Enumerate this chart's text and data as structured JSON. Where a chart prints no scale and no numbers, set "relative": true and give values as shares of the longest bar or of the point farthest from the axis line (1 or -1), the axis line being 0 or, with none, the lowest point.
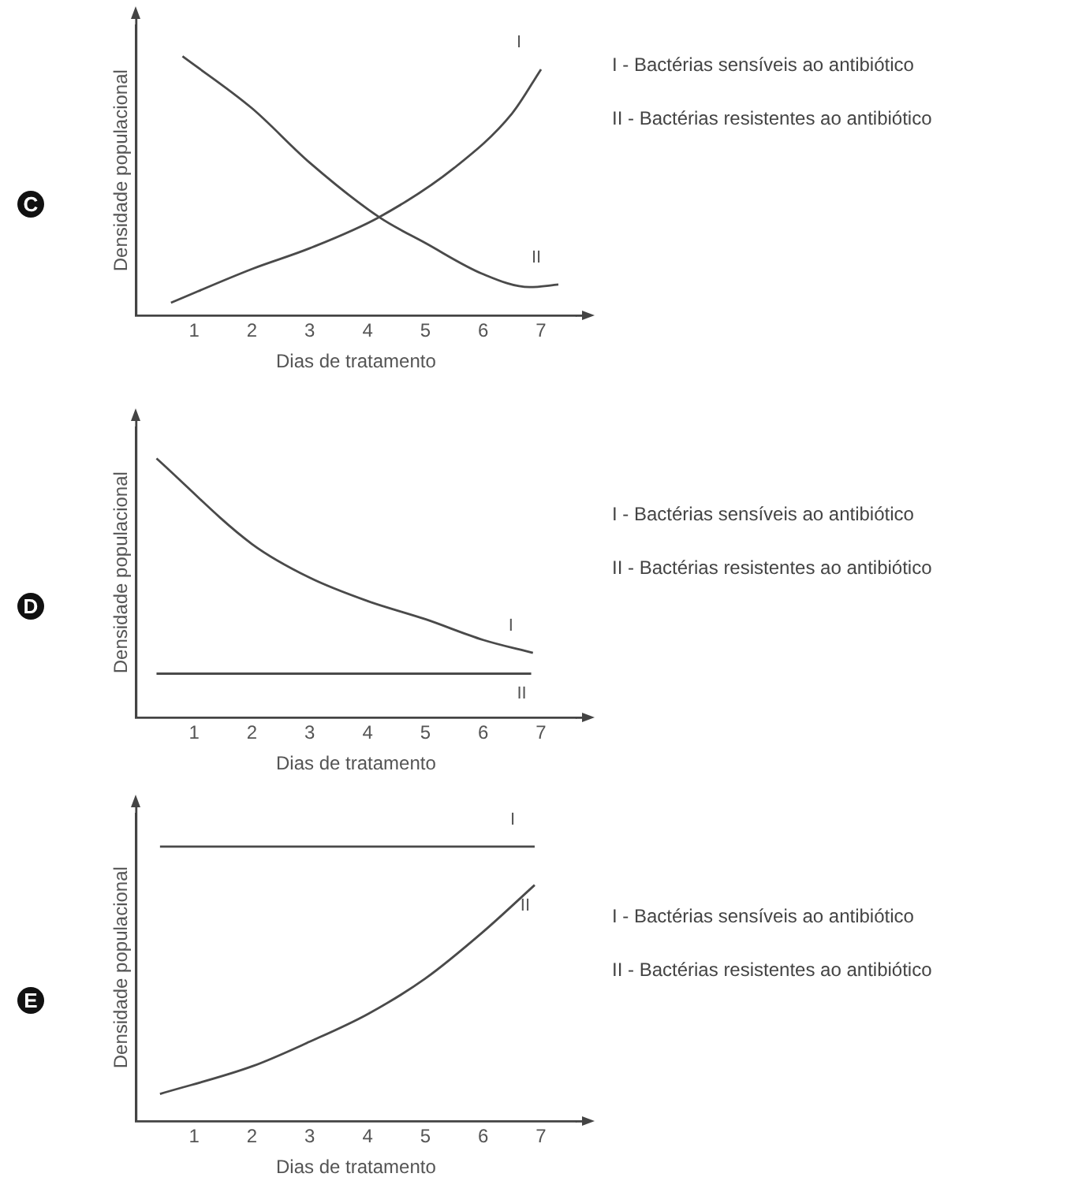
{
  "chart_data": [
    {
      "type": "line",
      "title": "C",
      "xlabel": "Dias de tratamento",
      "ylabel": "Densidade populacional",
      "relative": true,
      "marker": "none",
      "legend": false,
      "grid": false,
      "xlim": [
        0,
        7.6
      ],
      "xticks": [
        1,
        2,
        3,
        4,
        5,
        6,
        7
      ],
      "series": [
        {
          "name": "I",
          "color": "#4a4a4a",
          "x": [
            0.6,
            2,
            3,
            4.2,
            5.5,
            6.5,
            7
          ],
          "values": [
            0.05,
            0.18,
            0.26,
            0.38,
            0.57,
            0.78,
            0.95
          ]
        },
        {
          "name": "II",
          "color": "#4a4a4a",
          "x": [
            0.8,
            2,
            3,
            4.2,
            5,
            6,
            6.8,
            7.3
          ],
          "values": [
            1,
            0.8,
            0.59,
            0.38,
            0.28,
            0.16,
            0.11,
            0.12
          ]
        }
      ],
      "annotations": [
        "I - Bactérias sensíveis ao antibiótico",
        "II - Bactérias resistentes ao antibiótico"
      ]
    },
    {
      "type": "line",
      "title": "D",
      "xlabel": "Dias de tratamento",
      "ylabel": "Densidade populacional",
      "relative": true,
      "marker": "none",
      "legend": false,
      "grid": false,
      "xlim": [
        0,
        7.6
      ],
      "xticks": [
        1,
        2,
        3,
        4,
        5,
        6,
        7
      ],
      "series": [
        {
          "name": "I",
          "color": "#4a4a4a",
          "x": [
            0.35,
            2,
            3,
            4,
            5,
            6,
            6.86
          ],
          "values": [
            1,
            0.67,
            0.54,
            0.45,
            0.38,
            0.3,
            0.25
          ]
        },
        {
          "name": "II",
          "color": "#4a4a4a",
          "x": [
            0.35,
            6.83
          ],
          "values": [
            0.17,
            0.17
          ]
        }
      ],
      "annotations": [
        "I - Bactérias sensíveis ao antibiótico",
        "II - Bactérias resistentes ao antibiótico"
      ]
    },
    {
      "type": "line",
      "title": "E",
      "xlabel": "Dias de tratamento",
      "ylabel": "Densidade populacional",
      "relative": true,
      "marker": "none",
      "legend": false,
      "grid": false,
      "xlim": [
        0,
        7.6
      ],
      "xticks": [
        1,
        2,
        3,
        4,
        5,
        6,
        7
      ],
      "series": [
        {
          "name": "I",
          "color": "#4a4a4a",
          "x": [
            0.41,
            6.89
          ],
          "values": [
            1,
            1
          ]
        },
        {
          "name": "II",
          "color": "#4a4a4a",
          "x": [
            0.41,
            2,
            3,
            4,
            5,
            6,
            6.89
          ],
          "values": [
            0.1,
            0.2,
            0.29,
            0.39,
            0.52,
            0.69,
            0.86
          ]
        }
      ],
      "annotations": [
        "I - Bactérias sensíveis ao antibiótico",
        "II - Bactérias resistentes ao antibiótico"
      ]
    }
  ]
}
